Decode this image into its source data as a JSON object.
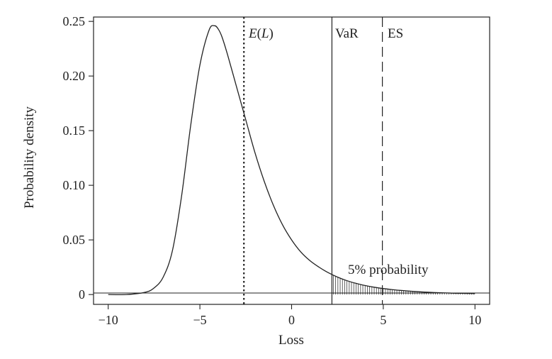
{
  "chart_data": {
    "type": "line",
    "title": "",
    "xlabel": "Loss",
    "ylabel": "Probability density",
    "xlim": [
      -10.8,
      10.8
    ],
    "ylim": [
      -0.009,
      0.254
    ],
    "x_ticks": [
      -10,
      -5,
      0,
      5,
      10
    ],
    "x_tick_labels": [
      "−10",
      "−5",
      "0",
      "5",
      "10"
    ],
    "y_ticks": [
      0,
      0.05,
      0.1,
      0.15,
      0.2,
      0.25
    ],
    "y_tick_labels": [
      "0",
      "0.05",
      "0.10",
      "0.15",
      "0.20",
      "0.25"
    ],
    "grid": false,
    "series": [
      {
        "x": [
          -10,
          -9,
          -8,
          -7.5,
          -7,
          -6.5,
          -6,
          -5.5,
          -5,
          -4.5,
          -4.2,
          -4,
          -3.8,
          -3.5,
          -3,
          -2.5,
          -2,
          -1.5,
          -1,
          -0.5,
          0,
          0.5,
          1,
          1.5,
          2,
          2.5,
          3,
          3.5,
          4,
          4.5,
          5,
          5.5,
          6,
          7,
          8,
          9,
          10
        ],
        "y": [
          0.0,
          0.0,
          0.002,
          0.006,
          0.016,
          0.04,
          0.09,
          0.155,
          0.21,
          0.242,
          0.246,
          0.243,
          0.236,
          0.22,
          0.19,
          0.16,
          0.13,
          0.104,
          0.082,
          0.064,
          0.05,
          0.039,
          0.031,
          0.025,
          0.02,
          0.016,
          0.0128,
          0.0103,
          0.0083,
          0.0067,
          0.0055,
          0.0045,
          0.0037,
          0.0025,
          0.0017,
          0.0012,
          0.0008
        ]
      }
    ],
    "vertical_lines": [
      {
        "label": "E(L)",
        "x": -2.6,
        "style": "dotted"
      },
      {
        "label": "VaR",
        "x": 2.2,
        "style": "solid"
      },
      {
        "label": "ES",
        "x": 4.95,
        "style": "dashed"
      }
    ],
    "shaded_tail": {
      "from_x": 2.2,
      "to_x": 10,
      "label": "5% probability"
    },
    "colors": {
      "line": "#222222",
      "axis": "#222222"
    }
  }
}
